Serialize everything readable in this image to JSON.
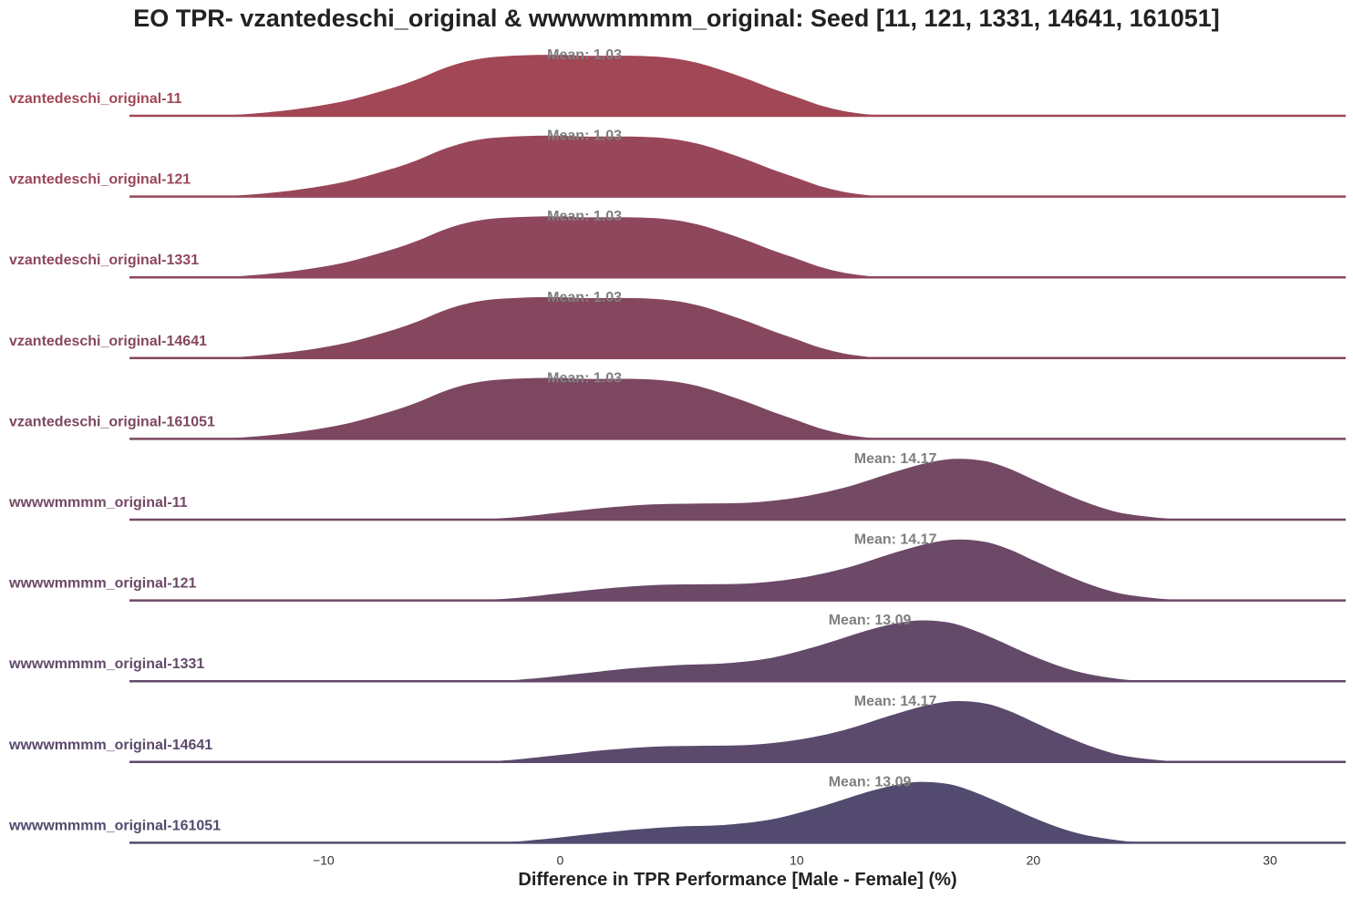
{
  "chart_data": {
    "type": "ridgeline",
    "title": "EO TPR- vzantedeschi_original & wwwwmmmm_original: Seed [11, 121, 1331, 14641, 161051]",
    "xlabel": "Difference in TPR Performance [Male - Female] (%)",
    "ylabel": "",
    "xlim": [
      -18.2,
      33.2
    ],
    "xticks": [
      -10,
      0,
      10,
      20,
      30
    ],
    "xtick_labels": [
      "−10",
      "0",
      "10",
      "20",
      "30"
    ],
    "grid": false,
    "legend": "none",
    "series": [
      {
        "name": "vzantedeschi_original-11",
        "mean": 1.03,
        "mean_label": "Mean: 1.03",
        "color": "#a14755",
        "density": [
          [
            -18.2,
            0
          ],
          [
            -15,
            0.001
          ],
          [
            -13,
            0.004
          ],
          [
            -11,
            0.01
          ],
          [
            -9,
            0.02
          ],
          [
            -7,
            0.036
          ],
          [
            -6,
            0.046
          ],
          [
            -5,
            0.058
          ],
          [
            -4,
            0.067
          ],
          [
            -3,
            0.072
          ],
          [
            -2,
            0.074
          ],
          [
            -1,
            0.075
          ],
          [
            0,
            0.075
          ],
          [
            1,
            0.074
          ],
          [
            2,
            0.074
          ],
          [
            3,
            0.074
          ],
          [
            4,
            0.073
          ],
          [
            5,
            0.07
          ],
          [
            6,
            0.064
          ],
          [
            7,
            0.055
          ],
          [
            8,
            0.045
          ],
          [
            9,
            0.034
          ],
          [
            10,
            0.024
          ],
          [
            11,
            0.014
          ],
          [
            12,
            0.007
          ],
          [
            13,
            0.003
          ],
          [
            14,
            0.001
          ],
          [
            15,
            0
          ],
          [
            33.2,
            0
          ]
        ]
      },
      {
        "name": "vzantedeschi_original-121",
        "mean": 1.03,
        "mean_label": "Mean: 1.03",
        "color": "#98475a",
        "density": [
          [
            -18.2,
            0
          ],
          [
            -15,
            0.001
          ],
          [
            -13,
            0.004
          ],
          [
            -11,
            0.01
          ],
          [
            -9,
            0.02
          ],
          [
            -7,
            0.036
          ],
          [
            -6,
            0.046
          ],
          [
            -5,
            0.058
          ],
          [
            -4,
            0.067
          ],
          [
            -3,
            0.072
          ],
          [
            -2,
            0.074
          ],
          [
            -1,
            0.075
          ],
          [
            0,
            0.075
          ],
          [
            1,
            0.074
          ],
          [
            2,
            0.074
          ],
          [
            3,
            0.074
          ],
          [
            4,
            0.073
          ],
          [
            5,
            0.07
          ],
          [
            6,
            0.064
          ],
          [
            7,
            0.055
          ],
          [
            8,
            0.045
          ],
          [
            9,
            0.034
          ],
          [
            10,
            0.024
          ],
          [
            11,
            0.014
          ],
          [
            12,
            0.007
          ],
          [
            13,
            0.003
          ],
          [
            14,
            0.001
          ],
          [
            15,
            0
          ],
          [
            33.2,
            0
          ]
        ]
      },
      {
        "name": "vzantedeschi_original-1331",
        "mean": 1.03,
        "mean_label": "Mean: 1.03",
        "color": "#8e475c",
        "density": [
          [
            -18.2,
            0
          ],
          [
            -15,
            0.001
          ],
          [
            -13,
            0.004
          ],
          [
            -11,
            0.01
          ],
          [
            -9,
            0.02
          ],
          [
            -7,
            0.036
          ],
          [
            -6,
            0.046
          ],
          [
            -5,
            0.058
          ],
          [
            -4,
            0.067
          ],
          [
            -3,
            0.072
          ],
          [
            -2,
            0.074
          ],
          [
            -1,
            0.075
          ],
          [
            0,
            0.075
          ],
          [
            1,
            0.074
          ],
          [
            2,
            0.074
          ],
          [
            3,
            0.074
          ],
          [
            4,
            0.073
          ],
          [
            5,
            0.07
          ],
          [
            6,
            0.064
          ],
          [
            7,
            0.055
          ],
          [
            8,
            0.045
          ],
          [
            9,
            0.034
          ],
          [
            10,
            0.024
          ],
          [
            11,
            0.014
          ],
          [
            12,
            0.007
          ],
          [
            13,
            0.003
          ],
          [
            14,
            0.001
          ],
          [
            15,
            0
          ],
          [
            33.2,
            0
          ]
        ]
      },
      {
        "name": "vzantedeschi_original-14641",
        "mean": 1.03,
        "mean_label": "Mean: 1.03",
        "color": "#86475e",
        "density": [
          [
            -18.2,
            0
          ],
          [
            -15,
            0.001
          ],
          [
            -13,
            0.004
          ],
          [
            -11,
            0.01
          ],
          [
            -9,
            0.02
          ],
          [
            -7,
            0.036
          ],
          [
            -6,
            0.046
          ],
          [
            -5,
            0.058
          ],
          [
            -4,
            0.067
          ],
          [
            -3,
            0.072
          ],
          [
            -2,
            0.074
          ],
          [
            -1,
            0.075
          ],
          [
            0,
            0.075
          ],
          [
            1,
            0.074
          ],
          [
            2,
            0.074
          ],
          [
            3,
            0.074
          ],
          [
            4,
            0.073
          ],
          [
            5,
            0.07
          ],
          [
            6,
            0.064
          ],
          [
            7,
            0.055
          ],
          [
            8,
            0.045
          ],
          [
            9,
            0.034
          ],
          [
            10,
            0.024
          ],
          [
            11,
            0.014
          ],
          [
            12,
            0.007
          ],
          [
            13,
            0.003
          ],
          [
            14,
            0.001
          ],
          [
            15,
            0
          ],
          [
            33.2,
            0
          ]
        ]
      },
      {
        "name": "vzantedeschi_original-161051",
        "mean": 1.03,
        "mean_label": "Mean: 1.03",
        "color": "#7d4760",
        "density": [
          [
            -18.2,
            0
          ],
          [
            -15,
            0.001
          ],
          [
            -13,
            0.004
          ],
          [
            -11,
            0.01
          ],
          [
            -9,
            0.02
          ],
          [
            -7,
            0.036
          ],
          [
            -6,
            0.046
          ],
          [
            -5,
            0.058
          ],
          [
            -4,
            0.067
          ],
          [
            -3,
            0.072
          ],
          [
            -2,
            0.074
          ],
          [
            -1,
            0.075
          ],
          [
            0,
            0.075
          ],
          [
            1,
            0.074
          ],
          [
            2,
            0.074
          ],
          [
            3,
            0.074
          ],
          [
            4,
            0.073
          ],
          [
            5,
            0.07
          ],
          [
            6,
            0.064
          ],
          [
            7,
            0.055
          ],
          [
            8,
            0.045
          ],
          [
            9,
            0.034
          ],
          [
            10,
            0.024
          ],
          [
            11,
            0.014
          ],
          [
            12,
            0.007
          ],
          [
            13,
            0.003
          ],
          [
            14,
            0.001
          ],
          [
            15,
            0
          ],
          [
            33.2,
            0
          ]
        ]
      },
      {
        "name": "wwwwmmmm_original-11",
        "mean": 14.17,
        "mean_label": "Mean: 14.17",
        "color": "#744964",
        "density": [
          [
            -18.2,
            0
          ],
          [
            -7,
            0
          ],
          [
            -4,
            0.001
          ],
          [
            -2,
            0.004
          ],
          [
            0,
            0.01
          ],
          [
            2,
            0.016
          ],
          [
            4,
            0.02
          ],
          [
            6,
            0.021
          ],
          [
            8,
            0.022
          ],
          [
            10,
            0.028
          ],
          [
            12,
            0.04
          ],
          [
            14,
            0.058
          ],
          [
            15.5,
            0.07
          ],
          [
            16.7,
            0.075
          ],
          [
            18,
            0.072
          ],
          [
            19,
            0.063
          ],
          [
            20,
            0.05
          ],
          [
            21,
            0.037
          ],
          [
            22,
            0.025
          ],
          [
            23,
            0.015
          ],
          [
            24,
            0.008
          ],
          [
            26,
            0.002
          ],
          [
            28,
            0
          ],
          [
            33.2,
            0
          ]
        ]
      },
      {
        "name": "wwwwmmmm_original-121",
        "mean": 14.17,
        "mean_label": "Mean: 14.17",
        "color": "#6b4967",
        "density": [
          [
            -18.2,
            0
          ],
          [
            -7,
            0
          ],
          [
            -4,
            0.001
          ],
          [
            -2,
            0.004
          ],
          [
            0,
            0.01
          ],
          [
            2,
            0.016
          ],
          [
            4,
            0.02
          ],
          [
            6,
            0.021
          ],
          [
            8,
            0.022
          ],
          [
            10,
            0.028
          ],
          [
            12,
            0.04
          ],
          [
            14,
            0.058
          ],
          [
            15.5,
            0.07
          ],
          [
            16.7,
            0.075
          ],
          [
            18,
            0.072
          ],
          [
            19,
            0.063
          ],
          [
            20,
            0.05
          ],
          [
            21,
            0.037
          ],
          [
            22,
            0.025
          ],
          [
            23,
            0.015
          ],
          [
            24,
            0.008
          ],
          [
            26,
            0.002
          ],
          [
            28,
            0
          ],
          [
            33.2,
            0
          ]
        ]
      },
      {
        "name": "wwwwmmmm_original-1331",
        "mean": 13.09,
        "mean_label": "Mean: 13.09",
        "color": "#634a69",
        "density": [
          [
            -18.2,
            0
          ],
          [
            -6,
            0
          ],
          [
            -3,
            0.001
          ],
          [
            -1,
            0.005
          ],
          [
            1,
            0.011
          ],
          [
            3,
            0.017
          ],
          [
            5,
            0.021
          ],
          [
            7,
            0.023
          ],
          [
            9,
            0.03
          ],
          [
            11,
            0.045
          ],
          [
            13,
            0.063
          ],
          [
            14.3,
            0.072
          ],
          [
            15.3,
            0.075
          ],
          [
            16.5,
            0.072
          ],
          [
            17.5,
            0.063
          ],
          [
            18.5,
            0.051
          ],
          [
            19.5,
            0.038
          ],
          [
            20.5,
            0.026
          ],
          [
            21.5,
            0.016
          ],
          [
            22.5,
            0.009
          ],
          [
            24,
            0.003
          ],
          [
            26,
            0
          ],
          [
            33.2,
            0
          ]
        ]
      },
      {
        "name": "wwwwmmmm_original-14641",
        "mean": 14.17,
        "mean_label": "Mean: 14.17",
        "color": "#5b4a6c",
        "density": [
          [
            -18.2,
            0
          ],
          [
            -7,
            0
          ],
          [
            -4,
            0.001
          ],
          [
            -2,
            0.004
          ],
          [
            0,
            0.01
          ],
          [
            2,
            0.016
          ],
          [
            4,
            0.02
          ],
          [
            6,
            0.021
          ],
          [
            8,
            0.022
          ],
          [
            10,
            0.028
          ],
          [
            12,
            0.04
          ],
          [
            14,
            0.058
          ],
          [
            15.5,
            0.07
          ],
          [
            16.7,
            0.075
          ],
          [
            18,
            0.072
          ],
          [
            19,
            0.063
          ],
          [
            20,
            0.05
          ],
          [
            21,
            0.037
          ],
          [
            22,
            0.025
          ],
          [
            23,
            0.015
          ],
          [
            24,
            0.008
          ],
          [
            26,
            0.002
          ],
          [
            28,
            0
          ],
          [
            33.2,
            0
          ]
        ]
      },
      {
        "name": "wwwwmmmm_original-161051",
        "mean": 13.09,
        "mean_label": "Mean: 13.09",
        "color": "#524b6f",
        "density": [
          [
            -18.2,
            0
          ],
          [
            -6,
            0
          ],
          [
            -3,
            0.001
          ],
          [
            -1,
            0.005
          ],
          [
            1,
            0.011
          ],
          [
            3,
            0.017
          ],
          [
            5,
            0.021
          ],
          [
            7,
            0.023
          ],
          [
            9,
            0.03
          ],
          [
            11,
            0.045
          ],
          [
            13,
            0.063
          ],
          [
            14.3,
            0.072
          ],
          [
            15.3,
            0.075
          ],
          [
            16.5,
            0.072
          ],
          [
            17.5,
            0.063
          ],
          [
            18.5,
            0.051
          ],
          [
            19.5,
            0.038
          ],
          [
            20.5,
            0.026
          ],
          [
            21.5,
            0.016
          ],
          [
            22.5,
            0.009
          ],
          [
            24,
            0.003
          ],
          [
            26,
            0
          ],
          [
            33.2,
            0
          ]
        ]
      }
    ]
  }
}
